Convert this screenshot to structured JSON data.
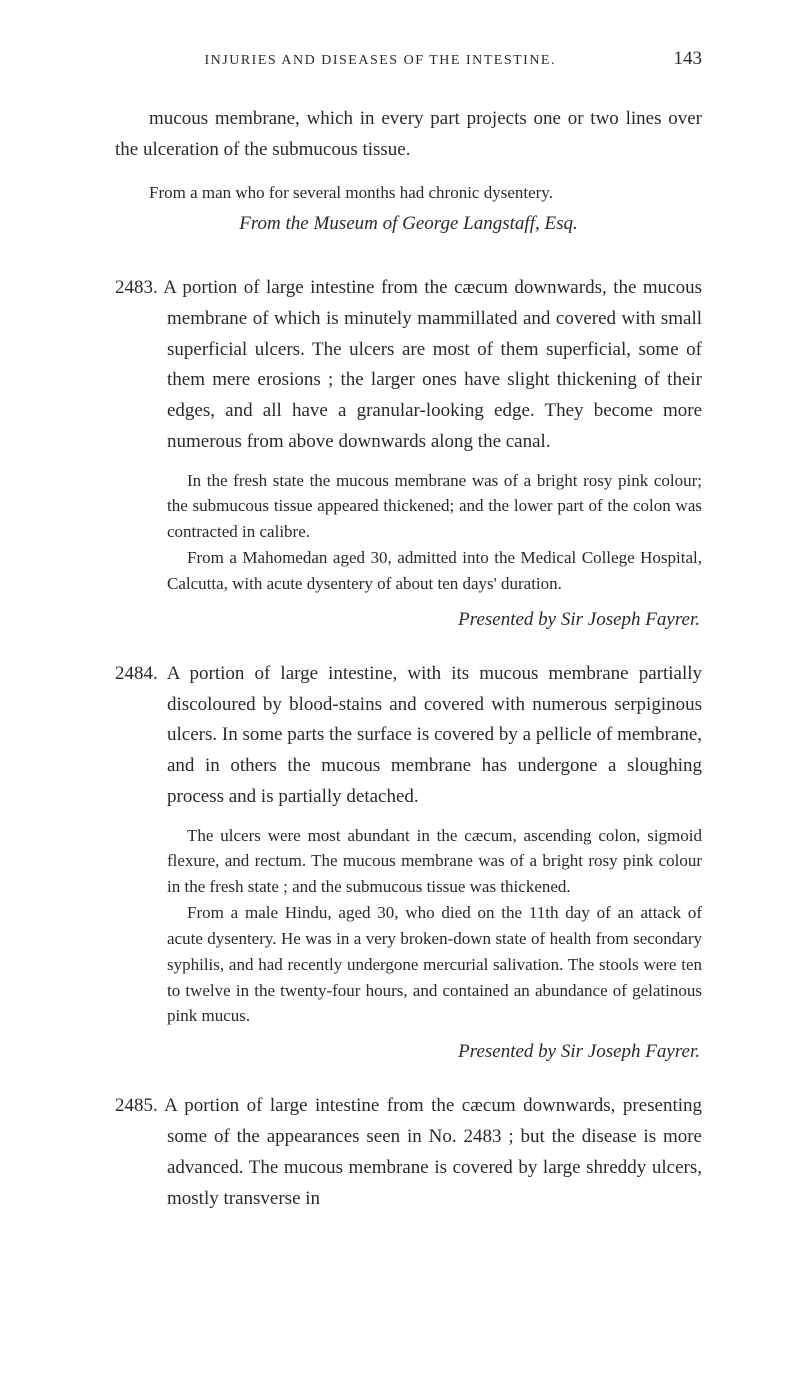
{
  "page": {
    "running_title": "INJURIES AND DISEASES OF THE INTESTINE.",
    "page_number": "143",
    "background_color": "#ffffff",
    "text_color": "#2a2a2a",
    "body_fontsize": 19,
    "small_fontsize": 17,
    "header_fontsize": 14
  },
  "continuation": {
    "text": "mucous membrane, which in every part projects one or two lines over the ulceration of the submucous tissue.",
    "subtext": "From a man who for several months had chronic dysentery.",
    "attribution": "From the Museum of George Langstaff, Esq."
  },
  "entry_2483": {
    "number": "2483.",
    "body": "A portion of large intestine from the cæcum downwards, the mucous membrane of which is minutely mammillated and covered with small superficial ulcers. The ulcers are most of them superficial, some of them mere erosions ; the larger ones have slight thickening of their edges, and all have a granular-looking edge. They become more numerous from above downwards along the canal.",
    "small1": "In the fresh state the mucous membrane was of a bright rosy pink colour; the submucous tissue appeared thickened; and the lower part of the colon was contracted in calibre.",
    "small2": "From a Mahomedan aged 30, admitted into the Medical College Hospital, Calcutta, with acute dysentery of about ten days' duration.",
    "attribution": "Presented by Sir Joseph Fayrer."
  },
  "entry_2484": {
    "number": "2484.",
    "body": "A portion of large intestine, with its mucous membrane partially discoloured by blood-stains and covered with numerous serpiginous ulcers. In some parts the surface is covered by a pellicle of membrane, and in others the mucous membrane has undergone a sloughing process and is partially detached.",
    "small1": "The ulcers were most abundant in the cæcum, ascending colon, sigmoid flexure, and rectum. The mucous membrane was of a bright rosy pink colour in the fresh state ; and the submucous tissue was thickened.",
    "small2": "From a male Hindu, aged 30, who died on the 11th day of an attack of acute dysentery. He was in a very broken-down state of health from secondary syphilis, and had recently undergone mercurial salivation. The stools were ten to twelve in the twenty-four hours, and contained an abundance of gelatinous pink mucus.",
    "attribution": "Presented by Sir Joseph Fayrer."
  },
  "entry_2485": {
    "number": "2485.",
    "body": "A portion of large intestine from the cæcum downwards, presenting some of the appearances seen in No. 2483 ; but the disease is more advanced. The mucous membrane is covered by large shreddy ulcers, mostly transverse in"
  }
}
